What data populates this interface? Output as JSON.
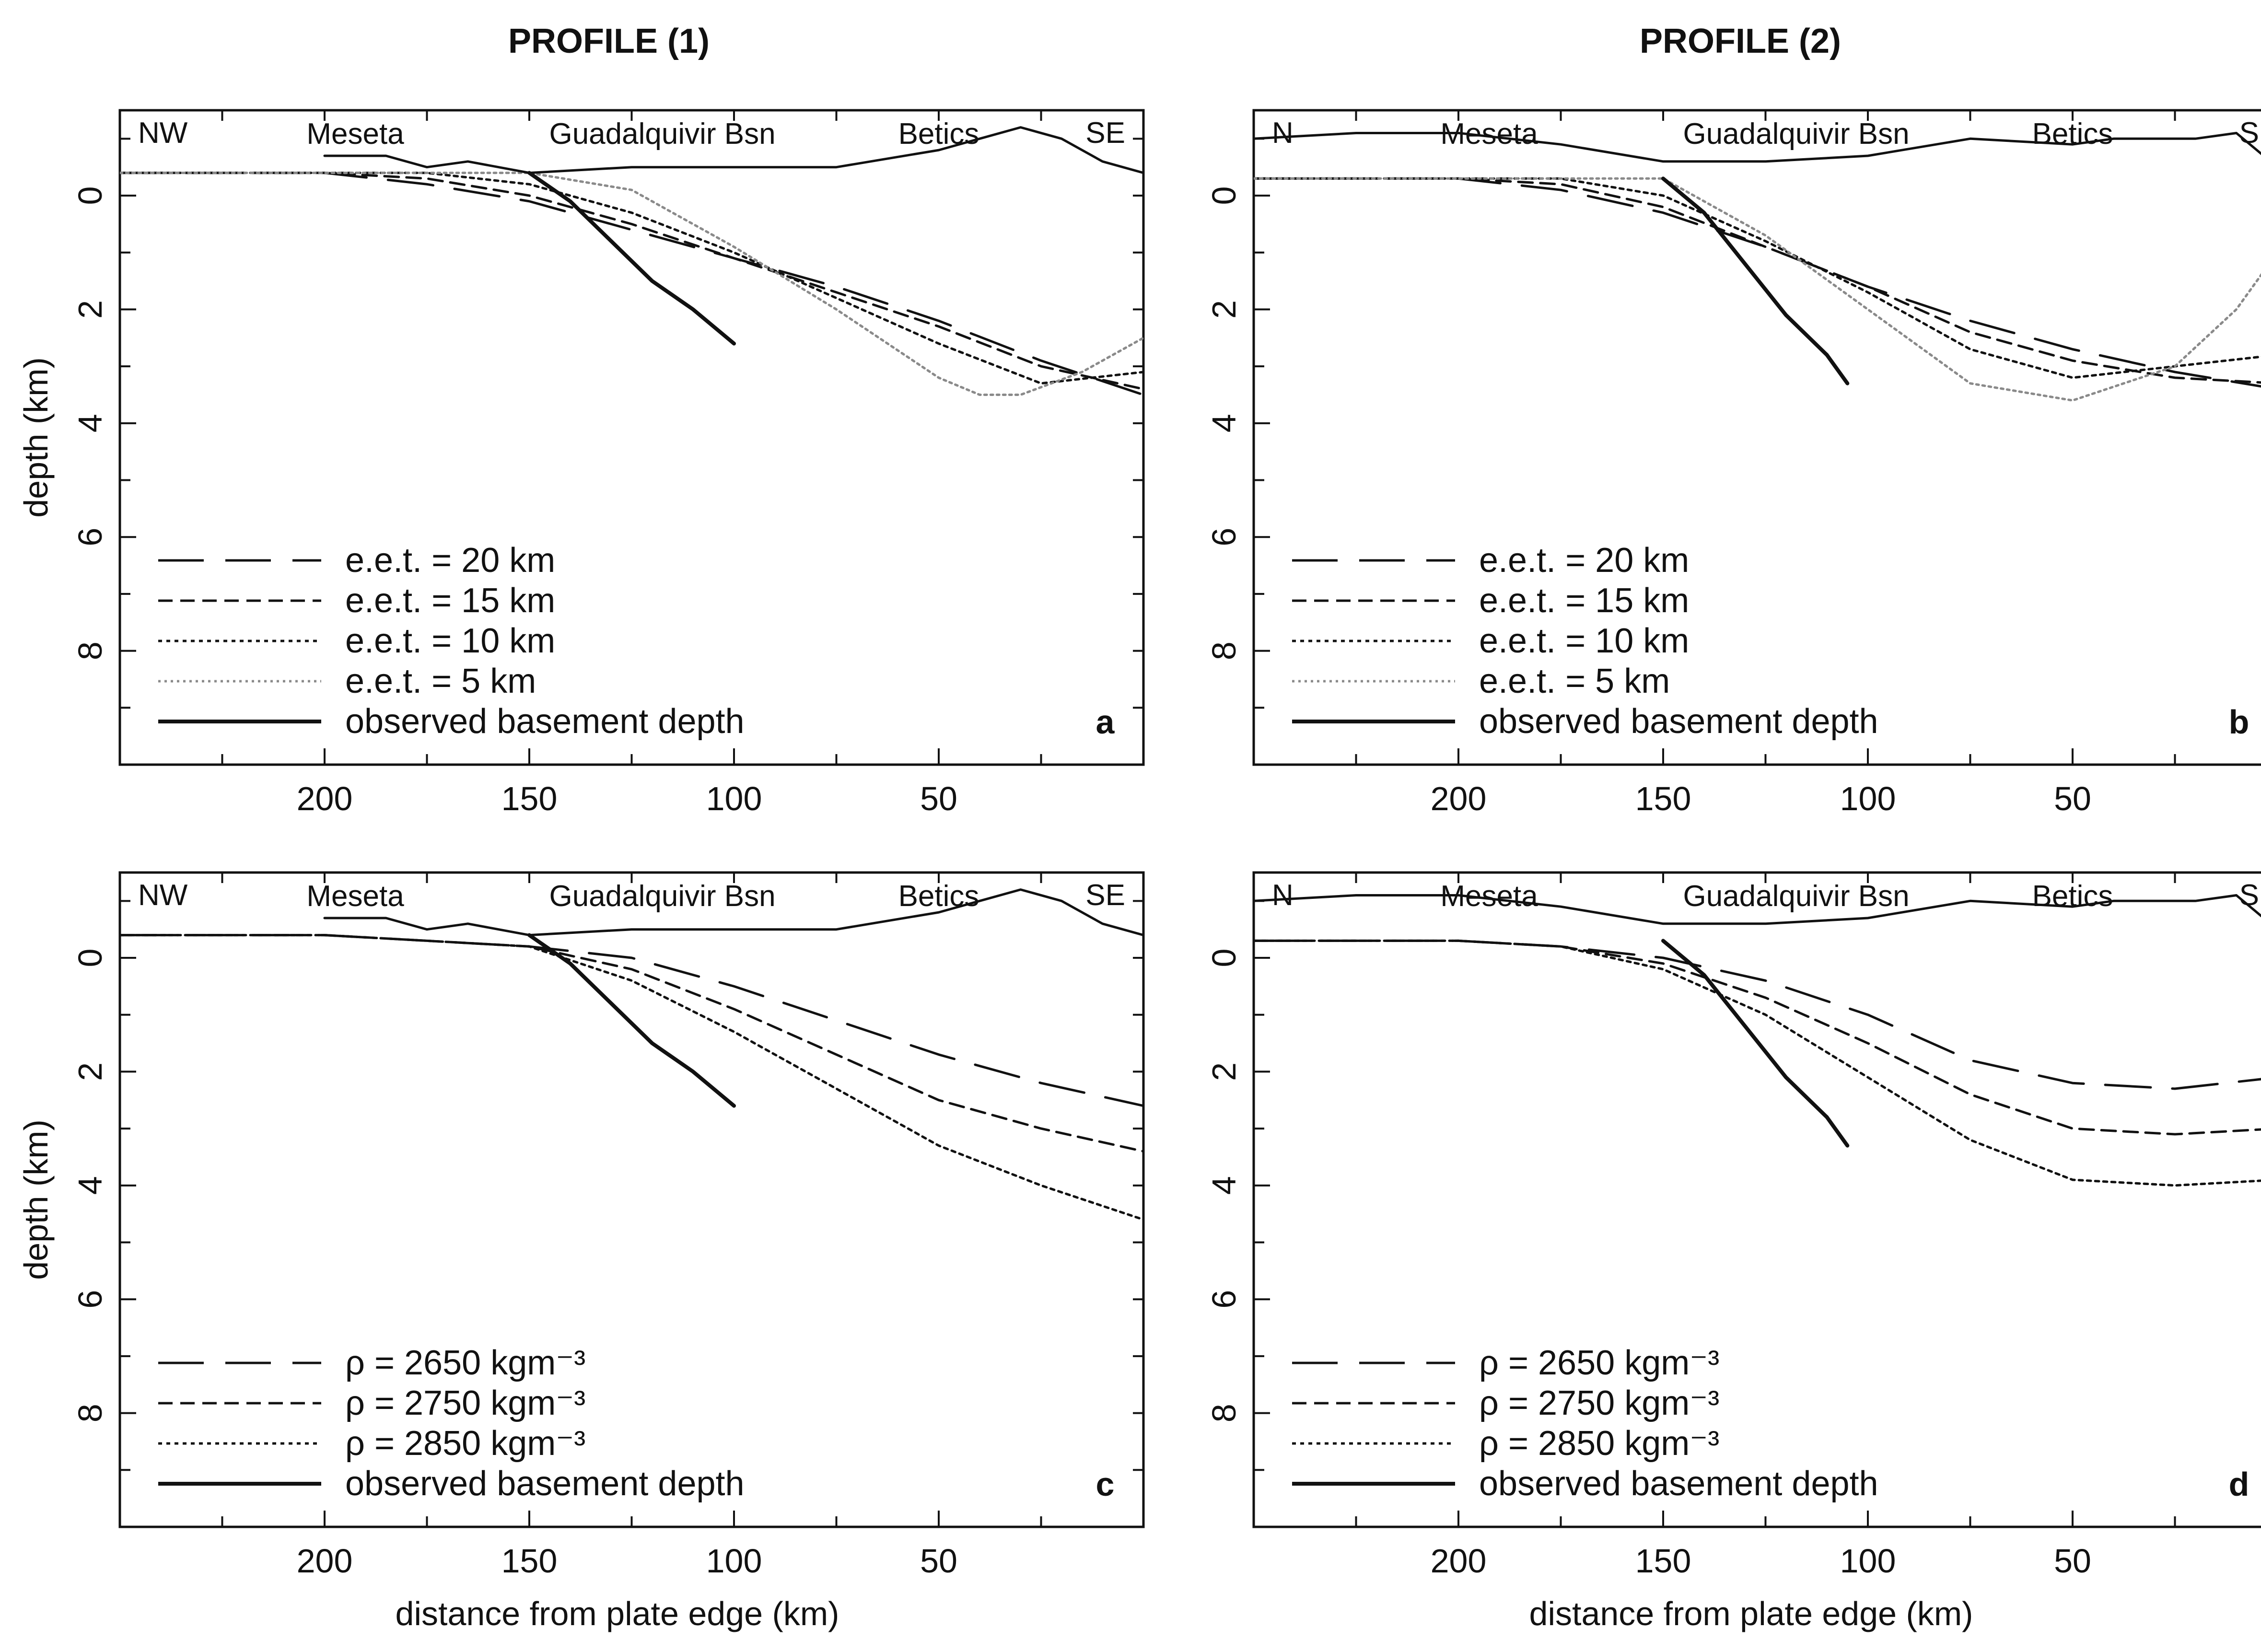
{
  "figure": {
    "profiles": [
      {
        "title": "PROFILE (1)"
      },
      {
        "title": "PROFILE (2)"
      }
    ],
    "y_axis_label": "depth (km)",
    "x_axis_label": "distance from plate edge (km)"
  },
  "chart_data": [
    {
      "type": "line",
      "panel": "a",
      "profile": "PROFILE (1)",
      "corner_labels": [
        "NW",
        "SE"
      ],
      "region_labels": [
        "Meseta",
        "Guadalquivir Bsn",
        "Betics"
      ],
      "xlabel": "",
      "ylabel": "depth (km)",
      "xlim": [
        250,
        0
      ],
      "ylim": [
        -1.5,
        10
      ],
      "y_inverted": true,
      "xticks": [
        200,
        150,
        100,
        50
      ],
      "yticks": [
        0,
        2,
        4,
        6,
        8
      ],
      "legend_position": "bottom-left",
      "series": [
        {
          "name": "e.e.t. = 20 km",
          "style": "long-dash",
          "x": [
            250,
            200,
            175,
            150,
            125,
            100,
            75,
            50,
            25,
            0
          ],
          "y": [
            -0.4,
            -0.4,
            -0.2,
            0.1,
            0.6,
            1.1,
            1.6,
            2.2,
            2.9,
            3.5
          ]
        },
        {
          "name": "e.e.t. = 15 km",
          "style": "dashed",
          "x": [
            250,
            200,
            175,
            150,
            125,
            100,
            75,
            50,
            25,
            0
          ],
          "y": [
            -0.4,
            -0.4,
            -0.3,
            0.0,
            0.5,
            1.1,
            1.7,
            2.3,
            3.0,
            3.4
          ]
        },
        {
          "name": "e.e.t. = 10 km",
          "style": "dotted",
          "x": [
            250,
            200,
            175,
            150,
            125,
            100,
            75,
            50,
            25,
            0
          ],
          "y": [
            -0.4,
            -0.4,
            -0.4,
            -0.2,
            0.3,
            1.0,
            1.8,
            2.6,
            3.3,
            3.1
          ]
        },
        {
          "name": "e.e.t. = 5 km",
          "style": "light-dotted",
          "x": [
            250,
            200,
            175,
            150,
            125,
            100,
            75,
            50,
            40,
            30,
            15,
            0
          ],
          "y": [
            -0.4,
            -0.4,
            -0.4,
            -0.4,
            -0.1,
            0.9,
            2.0,
            3.2,
            3.5,
            3.5,
            3.1,
            2.5
          ]
        },
        {
          "name": "observed basement depth",
          "style": "solid-thick",
          "x": [
            150,
            140,
            130,
            120,
            110,
            100
          ],
          "y": [
            -0.4,
            0.1,
            0.8,
            1.5,
            2.0,
            2.6
          ]
        },
        {
          "name": "topography",
          "style": "solid",
          "x": [
            200,
            185,
            175,
            165,
            150,
            125,
            100,
            75,
            50,
            40,
            30,
            20,
            10,
            0
          ],
          "y": [
            -0.7,
            -0.7,
            -0.5,
            -0.6,
            -0.4,
            -0.5,
            -0.5,
            -0.5,
            -0.8,
            -1.0,
            -1.2,
            -1.0,
            -0.6,
            -0.4
          ]
        }
      ]
    },
    {
      "type": "line",
      "panel": "b",
      "profile": "PROFILE (2)",
      "corner_labels": [
        "N",
        "S"
      ],
      "region_labels": [
        "Meseta",
        "Guadalquivir Bsn",
        "Betics"
      ],
      "xlabel": "",
      "ylabel": "",
      "xlim": [
        250,
        0
      ],
      "ylim": [
        -1.5,
        10
      ],
      "y_inverted": true,
      "xticks": [
        200,
        150,
        100,
        50
      ],
      "yticks": [
        0,
        2,
        4,
        6,
        8
      ],
      "legend_position": "bottom-left",
      "series": [
        {
          "name": "e.e.t. = 20 km",
          "style": "long-dash",
          "x": [
            250,
            200,
            175,
            150,
            125,
            100,
            75,
            50,
            25,
            0
          ],
          "y": [
            -0.3,
            -0.3,
            -0.1,
            0.3,
            0.9,
            1.6,
            2.2,
            2.7,
            3.1,
            3.4
          ]
        },
        {
          "name": "e.e.t. = 15 km",
          "style": "dashed",
          "x": [
            250,
            200,
            175,
            150,
            125,
            100,
            75,
            50,
            25,
            0
          ],
          "y": [
            -0.3,
            -0.3,
            -0.2,
            0.2,
            0.9,
            1.6,
            2.4,
            2.9,
            3.2,
            3.3
          ]
        },
        {
          "name": "e.e.t. = 10 km",
          "style": "dotted",
          "x": [
            250,
            200,
            175,
            150,
            125,
            100,
            75,
            50,
            25,
            0
          ],
          "y": [
            -0.3,
            -0.3,
            -0.3,
            0.0,
            0.8,
            1.7,
            2.7,
            3.2,
            3.0,
            2.8
          ]
        },
        {
          "name": "e.e.t. = 5 km",
          "style": "light-dotted",
          "x": [
            250,
            200,
            175,
            150,
            125,
            100,
            75,
            50,
            25,
            10,
            0
          ],
          "y": [
            -0.3,
            -0.3,
            -0.3,
            -0.3,
            0.7,
            2.0,
            3.3,
            3.6,
            3.0,
            2.0,
            1.0
          ]
        },
        {
          "name": "observed basement depth",
          "style": "solid-thick",
          "x": [
            150,
            140,
            130,
            120,
            110,
            105
          ],
          "y": [
            -0.3,
            0.3,
            1.2,
            2.1,
            2.8,
            3.3
          ]
        },
        {
          "name": "topography",
          "style": "solid",
          "x": [
            250,
            225,
            200,
            175,
            150,
            125,
            100,
            75,
            50,
            40,
            30,
            20,
            10,
            0
          ],
          "y": [
            -1.0,
            -1.1,
            -1.1,
            -0.9,
            -0.6,
            -0.6,
            -0.7,
            -1.0,
            -0.9,
            -1.0,
            -1.0,
            -1.0,
            -1.1,
            -0.5
          ]
        }
      ]
    },
    {
      "type": "line",
      "panel": "c",
      "profile": "PROFILE (1)",
      "corner_labels": [
        "NW",
        "SE"
      ],
      "region_labels": [
        "Meseta",
        "Guadalquivir Bsn",
        "Betics"
      ],
      "xlabel": "distance from plate edge (km)",
      "ylabel": "depth (km)",
      "xlim": [
        250,
        0
      ],
      "ylim": [
        -1.5,
        10
      ],
      "y_inverted": true,
      "xticks": [
        200,
        150,
        100,
        50
      ],
      "yticks": [
        0,
        2,
        4,
        6,
        8
      ],
      "legend_position": "bottom-left",
      "series": [
        {
          "name": "ρ = 2650 kgm⁻³",
          "style": "long-dash",
          "x": [
            250,
            200,
            175,
            150,
            125,
            100,
            75,
            50,
            25,
            0
          ],
          "y": [
            -0.4,
            -0.4,
            -0.3,
            -0.2,
            0.0,
            0.5,
            1.1,
            1.7,
            2.2,
            2.6
          ]
        },
        {
          "name": "ρ = 2750 kgm⁻³",
          "style": "dashed",
          "x": [
            250,
            200,
            175,
            150,
            125,
            100,
            75,
            50,
            25,
            0
          ],
          "y": [
            -0.4,
            -0.4,
            -0.3,
            -0.2,
            0.2,
            0.9,
            1.7,
            2.5,
            3.0,
            3.4
          ]
        },
        {
          "name": "ρ = 2850 kgm⁻³",
          "style": "dotted",
          "x": [
            250,
            200,
            175,
            150,
            125,
            100,
            75,
            50,
            25,
            0
          ],
          "y": [
            -0.4,
            -0.4,
            -0.3,
            -0.2,
            0.4,
            1.3,
            2.3,
            3.3,
            4.0,
            4.6
          ]
        },
        {
          "name": "observed basement depth",
          "style": "solid-thick",
          "x": [
            150,
            140,
            130,
            120,
            110,
            100
          ],
          "y": [
            -0.4,
            0.1,
            0.8,
            1.5,
            2.0,
            2.6
          ]
        },
        {
          "name": "topography",
          "style": "solid",
          "x": [
            200,
            185,
            175,
            165,
            150,
            125,
            100,
            75,
            50,
            40,
            30,
            20,
            10,
            0
          ],
          "y": [
            -0.7,
            -0.7,
            -0.5,
            -0.6,
            -0.4,
            -0.5,
            -0.5,
            -0.5,
            -0.8,
            -1.0,
            -1.2,
            -1.0,
            -0.6,
            -0.4
          ]
        }
      ]
    },
    {
      "type": "line",
      "panel": "d",
      "profile": "PROFILE (2)",
      "corner_labels": [
        "N",
        "S"
      ],
      "region_labels": [
        "Meseta",
        "Guadalquivir Bsn",
        "Betics"
      ],
      "xlabel": "distance from plate edge (km)",
      "ylabel": "",
      "xlim": [
        250,
        0
      ],
      "ylim": [
        -1.5,
        10
      ],
      "y_inverted": true,
      "xticks": [
        200,
        150,
        100,
        50
      ],
      "yticks": [
        0,
        2,
        4,
        6,
        8
      ],
      "legend_position": "bottom-left",
      "series": [
        {
          "name": "ρ = 2650 kgm⁻³",
          "style": "long-dash",
          "x": [
            250,
            200,
            175,
            150,
            125,
            100,
            75,
            50,
            25,
            0
          ],
          "y": [
            -0.3,
            -0.3,
            -0.2,
            0.0,
            0.4,
            1.0,
            1.8,
            2.2,
            2.3,
            2.1
          ]
        },
        {
          "name": "ρ = 2750 kgm⁻³",
          "style": "dashed",
          "x": [
            250,
            200,
            175,
            150,
            125,
            100,
            75,
            50,
            25,
            0
          ],
          "y": [
            -0.3,
            -0.3,
            -0.2,
            0.1,
            0.7,
            1.5,
            2.4,
            3.0,
            3.1,
            3.0
          ]
        },
        {
          "name": "ρ = 2850 kgm⁻³",
          "style": "dotted",
          "x": [
            250,
            200,
            175,
            150,
            125,
            100,
            75,
            50,
            25,
            0
          ],
          "y": [
            -0.3,
            -0.3,
            -0.2,
            0.2,
            1.0,
            2.1,
            3.2,
            3.9,
            4.0,
            3.9
          ]
        },
        {
          "name": "observed basement depth",
          "style": "solid-thick",
          "x": [
            150,
            140,
            130,
            120,
            110,
            105
          ],
          "y": [
            -0.3,
            0.3,
            1.2,
            2.1,
            2.8,
            3.3
          ]
        },
        {
          "name": "topography",
          "style": "solid",
          "x": [
            250,
            225,
            200,
            175,
            150,
            125,
            100,
            75,
            50,
            40,
            30,
            20,
            10,
            0
          ],
          "y": [
            -1.0,
            -1.1,
            -1.1,
            -0.9,
            -0.6,
            -0.6,
            -0.7,
            -1.0,
            -0.9,
            -1.0,
            -1.0,
            -1.0,
            -1.1,
            -0.5
          ]
        }
      ]
    }
  ]
}
